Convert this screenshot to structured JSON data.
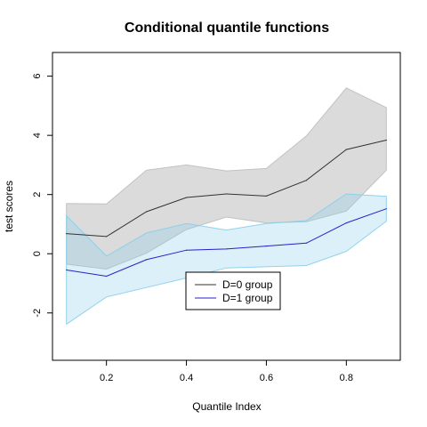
{
  "chart_data": {
    "type": "line",
    "title": "Conditional quantile functions",
    "xlabel": "Quantile Index",
    "ylabel": "test scores",
    "x": [
      0.1,
      0.2,
      0.3,
      0.4,
      0.5,
      0.6,
      0.7,
      0.8,
      0.9
    ],
    "xlim": [
      0.065,
      0.935
    ],
    "ylim": [
      -3.6,
      6.8
    ],
    "x_ticks": [
      0.2,
      0.4,
      0.6,
      0.8
    ],
    "y_ticks": [
      -2,
      0,
      2,
      4,
      6
    ],
    "grid": false,
    "legend_placement": "center-bottom",
    "series": [
      {
        "name": "D=0 group",
        "color": "#333333",
        "band_color": "#bebebe",
        "values": [
          0.68,
          0.58,
          1.42,
          1.9,
          2.02,
          1.95,
          2.48,
          3.52,
          3.84
        ],
        "band_upper": [
          1.7,
          1.68,
          2.82,
          3.0,
          2.8,
          2.88,
          3.98,
          5.6,
          4.94
        ],
        "band_lower": [
          -0.35,
          -0.52,
          0.02,
          0.82,
          1.24,
          1.04,
          1.08,
          1.44,
          2.82
        ]
      },
      {
        "name": "D=1 group",
        "color": "#2222cc",
        "band_color": "#87ceeb",
        "values": [
          -0.55,
          -0.76,
          -0.2,
          0.12,
          0.16,
          0.26,
          0.36,
          1.04,
          1.52
        ],
        "band_upper": [
          1.28,
          -0.08,
          0.7,
          1.02,
          0.8,
          1.02,
          1.12,
          2.02,
          1.94
        ],
        "band_lower": [
          -2.38,
          -1.46,
          -1.14,
          -0.82,
          -0.48,
          -0.44,
          -0.4,
          0.08,
          1.1
        ]
      }
    ]
  }
}
